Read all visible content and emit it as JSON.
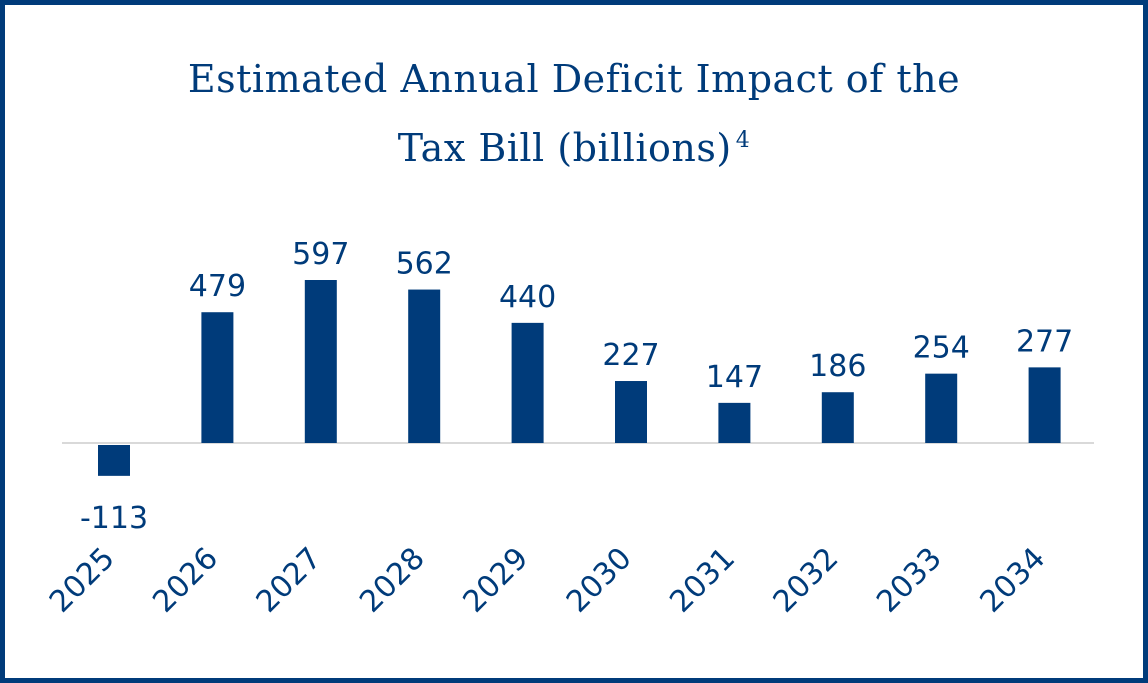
{
  "chart_data": {
    "type": "bar",
    "title_line1": "Estimated Annual Deficit Impact of the",
    "title_line2": "Tax Bill (billions)",
    "title_footnote": "4",
    "categories": [
      "2025",
      "2026",
      "2027",
      "2028",
      "2029",
      "2030",
      "2031",
      "2032",
      "2033",
      "2034"
    ],
    "values": [
      -113,
      479,
      597,
      562,
      440,
      227,
      147,
      186,
      254,
      277
    ],
    "xlabel": "",
    "ylabel": "",
    "grid": false,
    "legend": "none",
    "bar_color": "#003b7a",
    "axis_color": "#d9d9d9"
  }
}
